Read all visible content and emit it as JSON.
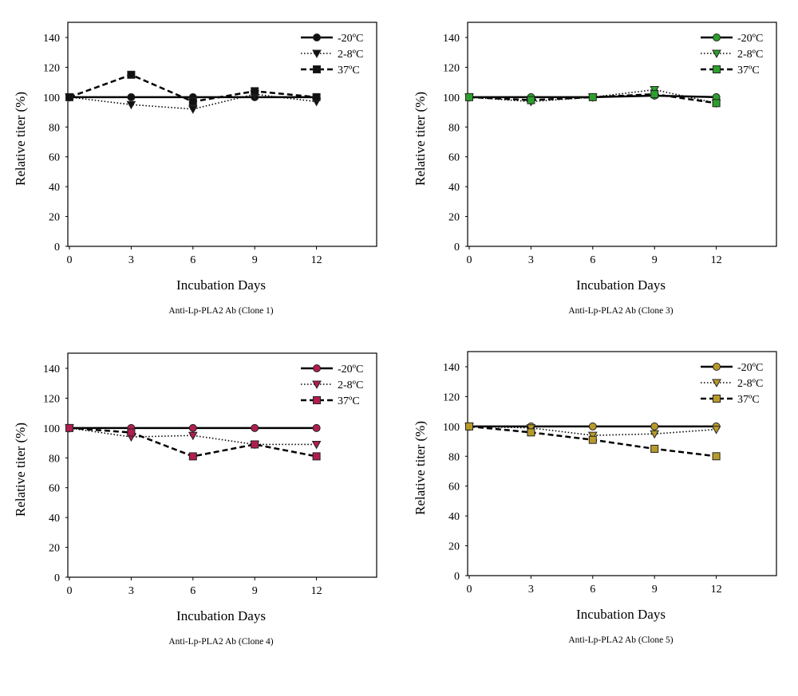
{
  "chart_data": [
    {
      "type": "line",
      "caption": "Anti-Lp-PLA2 Ab (Clone 1)",
      "xlabel": "Incubation Days",
      "ylabel": "Relative titer (%)",
      "x": [
        0,
        3,
        6,
        9,
        12
      ],
      "xticks": [
        0,
        3,
        6,
        9,
        12
      ],
      "yticks": [
        0,
        20,
        40,
        60,
        80,
        100,
        120,
        140
      ],
      "ylim": [
        0,
        140
      ],
      "legend_position": "top-right",
      "marker_color": "#111111",
      "series": [
        {
          "name": "-20ºC",
          "marker": "circle",
          "line": "solid",
          "values": [
            100,
            100,
            100,
            100,
            100
          ]
        },
        {
          "name": "2-8ºC",
          "marker": "triangle-down",
          "line": "dotted",
          "values": [
            100,
            95,
            92,
            102,
            97
          ]
        },
        {
          "name": "37ºC",
          "marker": "square",
          "line": "dashed",
          "values": [
            100,
            115,
            97,
            104,
            100
          ]
        }
      ]
    },
    {
      "type": "line",
      "caption": "Anti-Lp-PLA2 Ab (Clone 3)",
      "xlabel": "Incubation Days",
      "ylabel": "Relative titer (%)",
      "x": [
        0,
        3,
        6,
        9,
        12
      ],
      "xticks": [
        0,
        3,
        6,
        9,
        12
      ],
      "yticks": [
        0,
        20,
        40,
        60,
        80,
        100,
        120,
        140
      ],
      "ylim": [
        0,
        140
      ],
      "legend_position": "top-right",
      "marker_color": "#2ca02c",
      "series": [
        {
          "name": "-20ºC",
          "marker": "circle",
          "line": "solid",
          "values": [
            100,
            100,
            100,
            101,
            100
          ]
        },
        {
          "name": "2-8ºC",
          "marker": "triangle-down",
          "line": "dotted",
          "values": [
            100,
            97,
            100,
            105,
            96
          ]
        },
        {
          "name": "37ºC",
          "marker": "square",
          "line": "dashed",
          "values": [
            100,
            98,
            100,
            102,
            96
          ]
        }
      ]
    },
    {
      "type": "line",
      "caption": "Anti-Lp-PLA2 Ab (Clone 4)",
      "xlabel": "Incubation Days",
      "ylabel": "Relative titer (%)",
      "x": [
        0,
        3,
        6,
        9,
        12
      ],
      "xticks": [
        0,
        3,
        6,
        9,
        12
      ],
      "yticks": [
        0,
        20,
        40,
        60,
        80,
        100,
        120,
        140
      ],
      "ylim": [
        0,
        140
      ],
      "legend_position": "top-right",
      "marker_color": "#b01e4e",
      "series": [
        {
          "name": "-20ºC",
          "marker": "circle",
          "line": "solid",
          "values": [
            100,
            100,
            100,
            100,
            100
          ]
        },
        {
          "name": "2-8ºC",
          "marker": "triangle-down",
          "line": "dotted",
          "values": [
            100,
            94,
            95,
            89,
            89
          ]
        },
        {
          "name": "37ºC",
          "marker": "square",
          "line": "dashed",
          "values": [
            100,
            97,
            81,
            89,
            81
          ]
        }
      ]
    },
    {
      "type": "line",
      "caption": "Anti-Lp-PLA2 Ab (Clone 5)",
      "xlabel": "Incubation Days",
      "ylabel": "Relative titer (%)",
      "x": [
        0,
        3,
        6,
        9,
        12
      ],
      "xticks": [
        0,
        3,
        6,
        9,
        12
      ],
      "yticks": [
        0,
        20,
        40,
        60,
        80,
        100,
        120,
        140
      ],
      "ylim": [
        0,
        140
      ],
      "legend_position": "top-right",
      "marker_color": "#b89a2a",
      "series": [
        {
          "name": "-20ºC",
          "marker": "circle",
          "line": "solid",
          "values": [
            100,
            100,
            100,
            100,
            100
          ]
        },
        {
          "name": "2-8ºC",
          "marker": "triangle-down",
          "line": "dotted",
          "values": [
            100,
            99,
            94,
            95,
            98
          ]
        },
        {
          "name": "37ºC",
          "marker": "square",
          "line": "dashed",
          "values": [
            100,
            96,
            91,
            85,
            80
          ]
        }
      ]
    }
  ]
}
